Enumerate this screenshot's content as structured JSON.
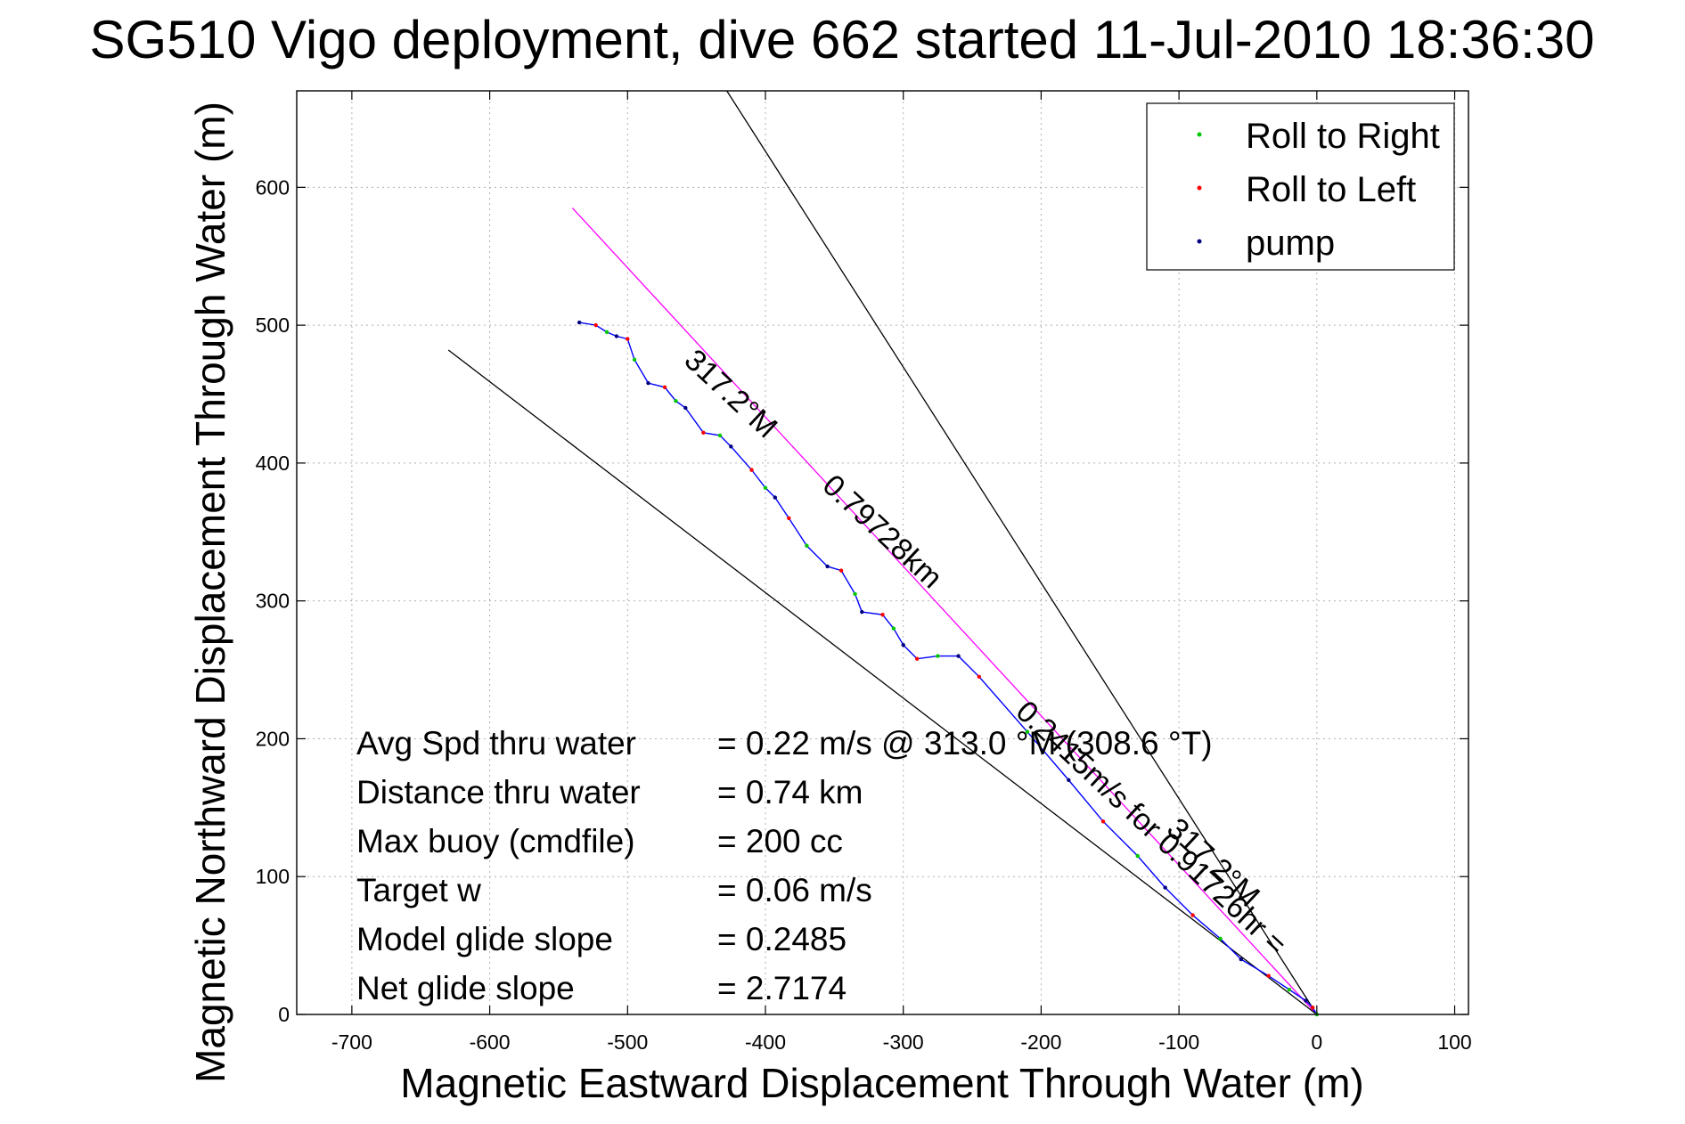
{
  "chart_data": {
    "type": "line",
    "title": "SG510 Vigo deployment, dive 662 started 11-Jul-2010 18:36:30",
    "xlabel": "Magnetic Eastward Displacement Through Water (m)",
    "ylabel": "Magnetic Northward Displacement Through Water (m)",
    "xlim": [
      -740,
      110
    ],
    "ylim": [
      0,
      670
    ],
    "xticks": [
      -700,
      -600,
      -500,
      -400,
      -300,
      -200,
      -100,
      0,
      100
    ],
    "yticks": [
      0,
      100,
      200,
      300,
      400,
      500,
      600
    ],
    "grid": true,
    "legend_position": "top-right",
    "legend": [
      {
        "label": "Roll to Right",
        "color": "#00c800"
      },
      {
        "label": "Roll to Left",
        "color": "#ff0000"
      },
      {
        "label": "pump",
        "color": "#000080"
      }
    ],
    "series": [
      {
        "name": "trajectory",
        "color": "#0000ff",
        "x": [
          0,
          -3,
          -8,
          -20,
          -35,
          -55,
          -70,
          -90,
          -110,
          -130,
          -155,
          -180,
          -210,
          -245,
          -260,
          -275,
          -290,
          -300,
          -307,
          -315,
          -330,
          -335,
          -345,
          -355,
          -370,
          -383,
          -393,
          -400,
          -410,
          -425,
          -433,
          -445,
          -458,
          -465,
          -473,
          -485,
          -495,
          -500,
          -508,
          -515,
          -523,
          -535
        ],
        "y": [
          0,
          5,
          10,
          18,
          28,
          40,
          55,
          72,
          92,
          115,
          140,
          170,
          205,
          245,
          260,
          260,
          258,
          268,
          280,
          290,
          292,
          305,
          322,
          325,
          340,
          360,
          375,
          382,
          395,
          412,
          420,
          422,
          440,
          445,
          455,
          458,
          475,
          490,
          492,
          495,
          500,
          502
        ]
      }
    ],
    "lines": [
      {
        "name": "bearing-line",
        "color": "#ff00ff",
        "x": [
          0,
          -540
        ],
        "y": [
          0,
          585
        ]
      },
      {
        "name": "upper-bound-line",
        "color": "#000000",
        "x": [
          0,
          -428
        ],
        "y": [
          0,
          670
        ]
      },
      {
        "name": "lower-bound-line",
        "color": "#000000",
        "x": [
          0,
          -630
        ],
        "y": [
          0,
          482
        ]
      }
    ],
    "annotations": [
      {
        "text": "317.2°M",
        "x": -430,
        "y": 445,
        "angle": 43
      },
      {
        "text": "0.79728km",
        "x": -320,
        "y": 345,
        "angle": 43
      },
      {
        "text": "0.2415m/s for 0.91726hr =",
        "x": -125,
        "y": 130,
        "angle": 43
      },
      {
        "text": "317.2°M",
        "x": -80,
        "y": 105,
        "angle": 43
      }
    ],
    "stats": [
      {
        "label": "Avg Spd thru water",
        "value": "=  0.22 m/s @ 313.0 °M (308.6 °T)"
      },
      {
        "label": "Distance thru water",
        "value": "=  0.74 km"
      },
      {
        "label": "Max buoy (cmdfile)",
        "value": "= 200 cc"
      },
      {
        "label": "Target w",
        "value": "= 0.06 m/s"
      },
      {
        "label": "Model glide slope",
        "value": "= 0.2485"
      },
      {
        "label": "Net glide slope",
        "value": "= 2.7174"
      }
    ]
  }
}
